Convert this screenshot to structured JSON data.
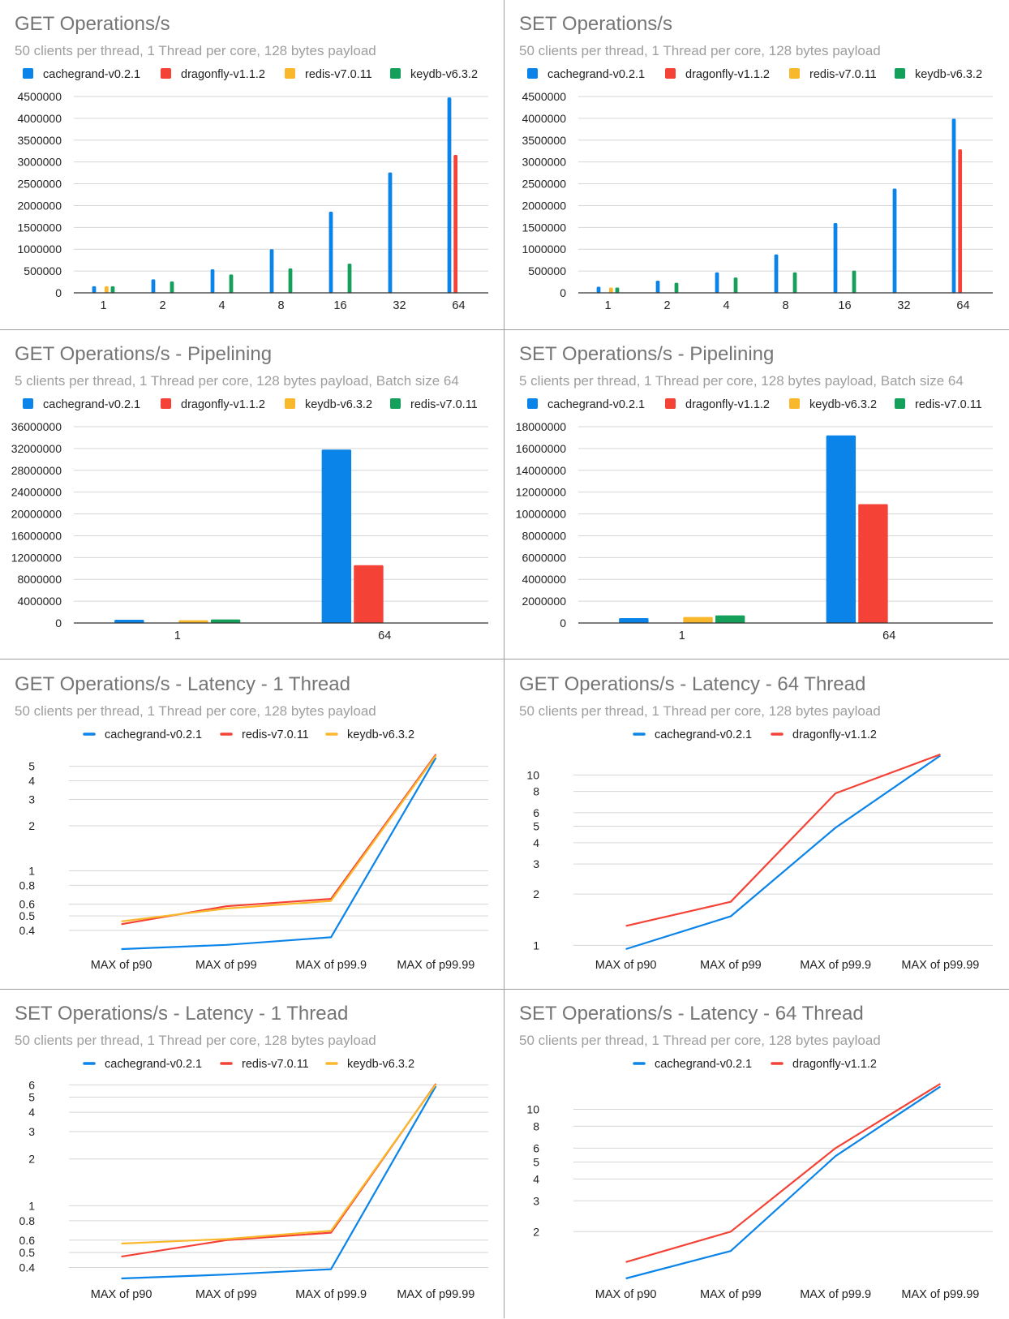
{
  "colors": {
    "cachegrand": "#0a84e8",
    "dragonfly": "#f44336",
    "redis": "#f9b82b",
    "keydb": "#14a05a",
    "title": "#757575",
    "subtitle": "#9e9e9e",
    "axis_text": "#222222",
    "grid": "#d6d6d6"
  },
  "chart_data": [
    {
      "id": "get-ops",
      "type": "bar",
      "title": "GET Operations/s",
      "subtitle": "50 clients per thread, 1 Thread per core, 128 bytes payload",
      "categories": [
        "1",
        "2",
        "4",
        "8",
        "16",
        "32",
        "64"
      ],
      "series": [
        {
          "name": "cachegrand-v0.2.1",
          "color_key": "cachegrand",
          "values": [
            150000,
            310000,
            540000,
            1000000,
            1860000,
            2760000,
            4480000
          ]
        },
        {
          "name": "dragonfly-v1.1.2",
          "color_key": "dragonfly",
          "values": [
            null,
            null,
            null,
            null,
            null,
            null,
            3160000
          ]
        },
        {
          "name": "redis-v7.0.11",
          "color_key": "redis",
          "values": [
            150000,
            null,
            null,
            null,
            null,
            null,
            null
          ]
        },
        {
          "name": "keydb-v6.3.2",
          "color_key": "keydb",
          "values": [
            150000,
            260000,
            420000,
            560000,
            670000,
            null,
            null
          ]
        }
      ],
      "y_ticks": [
        0,
        500000,
        1000000,
        1500000,
        2000000,
        2500000,
        3000000,
        3500000,
        4000000,
        4500000
      ],
      "ylim": [
        0,
        4500000
      ],
      "scale": "linear",
      "grid": true,
      "legend": "top"
    },
    {
      "id": "set-ops",
      "type": "bar",
      "title": "SET Operations/s",
      "subtitle": "50 clients per thread, 1 Thread per core, 128 bytes payload",
      "categories": [
        "1",
        "2",
        "4",
        "8",
        "16",
        "32",
        "64"
      ],
      "series": [
        {
          "name": "cachegrand-v0.2.1",
          "color_key": "cachegrand",
          "values": [
            140000,
            280000,
            470000,
            880000,
            1600000,
            2390000,
            3990000
          ]
        },
        {
          "name": "dragonfly-v1.1.2",
          "color_key": "dragonfly",
          "values": [
            null,
            null,
            null,
            null,
            null,
            null,
            3290000
          ]
        },
        {
          "name": "redis-v7.0.11",
          "color_key": "redis",
          "values": [
            120000,
            null,
            null,
            null,
            null,
            null,
            null
          ]
        },
        {
          "name": "keydb-v6.3.2",
          "color_key": "keydb",
          "values": [
            120000,
            230000,
            350000,
            470000,
            510000,
            null,
            null
          ]
        }
      ],
      "y_ticks": [
        0,
        500000,
        1000000,
        1500000,
        2000000,
        2500000,
        3000000,
        3500000,
        4000000,
        4500000
      ],
      "ylim": [
        0,
        4500000
      ],
      "scale": "linear",
      "grid": true,
      "legend": "top"
    },
    {
      "id": "get-pipe",
      "type": "bar",
      "title": "GET Operations/s - Pipelining",
      "subtitle": "5 clients per thread, 1 Thread per core, 128 bytes payload, Batch size 64",
      "categories": [
        "1",
        "64"
      ],
      "series": [
        {
          "name": "cachegrand-v0.2.1",
          "color_key": "cachegrand",
          "values": [
            600000,
            31800000
          ]
        },
        {
          "name": "dragonfly-v1.1.2",
          "color_key": "dragonfly",
          "values": [
            null,
            10600000
          ]
        },
        {
          "name": "keydb-v6.3.2",
          "color_key": "redis",
          "values": [
            500000,
            null
          ]
        },
        {
          "name": "redis-v7.0.11",
          "color_key": "keydb",
          "values": [
            650000,
            null
          ]
        }
      ],
      "y_ticks": [
        0,
        4000000,
        8000000,
        12000000,
        16000000,
        20000000,
        24000000,
        28000000,
        32000000,
        36000000
      ],
      "ylim": [
        0,
        36000000
      ],
      "scale": "linear",
      "grid": true,
      "legend": "top"
    },
    {
      "id": "set-pipe",
      "type": "bar",
      "title": "SET Operations/s - Pipelining",
      "subtitle": "5 clients per thread, 1 Thread per core, 128 bytes payload, Batch size 64",
      "categories": [
        "1",
        "64"
      ],
      "series": [
        {
          "name": "cachegrand-v0.2.1",
          "color_key": "cachegrand",
          "values": [
            450000,
            17200000
          ]
        },
        {
          "name": "dragonfly-v1.1.2",
          "color_key": "dragonfly",
          "values": [
            null,
            10900000
          ]
        },
        {
          "name": "keydb-v6.3.2",
          "color_key": "redis",
          "values": [
            550000,
            null
          ]
        },
        {
          "name": "redis-v7.0.11",
          "color_key": "keydb",
          "values": [
            700000,
            null
          ]
        }
      ],
      "y_ticks": [
        0,
        2000000,
        4000000,
        6000000,
        8000000,
        10000000,
        12000000,
        14000000,
        16000000,
        18000000
      ],
      "ylim": [
        0,
        18000000
      ],
      "scale": "linear",
      "grid": true,
      "legend": "top"
    },
    {
      "id": "get-lat-1",
      "type": "line",
      "title": "GET Operations/s - Latency - 1 Thread",
      "subtitle": "50 clients per thread, 1 Thread per core, 128 bytes payload",
      "categories": [
        "MAX of p90",
        "MAX of p99",
        "MAX of p99.9",
        "MAX of p99.99"
      ],
      "series": [
        {
          "name": "cachegrand-v0.2.1",
          "color_key": "cachegrand",
          "values": [
            0.3,
            0.32,
            0.36,
            5.7
          ]
        },
        {
          "name": "redis-v7.0.11",
          "color_key": "dragonfly",
          "values": [
            0.44,
            0.58,
            0.65,
            6.0
          ]
        },
        {
          "name": "keydb-v6.3.2",
          "color_key": "redis",
          "values": [
            0.46,
            0.56,
            0.63,
            5.9
          ]
        }
      ],
      "y_ticks": [
        0.4,
        0.5,
        0.6,
        0.8,
        1,
        2,
        3,
        4,
        5
      ],
      "ylim": [
        0.3,
        6.0
      ],
      "scale": "log",
      "grid": true,
      "legend": "top"
    },
    {
      "id": "get-lat-64",
      "type": "line",
      "title": "GET Operations/s - Latency - 64 Thread",
      "subtitle": "50 clients per thread, 1 Thread per core, 128 bytes payload",
      "categories": [
        "MAX of p90",
        "MAX of p99",
        "MAX of p99.9",
        "MAX of p99.99"
      ],
      "series": [
        {
          "name": "cachegrand-v0.2.1",
          "color_key": "cachegrand",
          "values": [
            0.95,
            1.48,
            4.9,
            13.0
          ]
        },
        {
          "name": "dragonfly-v1.1.2",
          "color_key": "dragonfly",
          "values": [
            1.3,
            1.8,
            7.8,
            13.2
          ]
        }
      ],
      "y_ticks": [
        1,
        2,
        3,
        4,
        5,
        6,
        8,
        10
      ],
      "ylim": [
        0.95,
        13.2
      ],
      "scale": "log",
      "grid": true,
      "legend": "top"
    },
    {
      "id": "set-lat-1",
      "type": "line",
      "title": "SET Operations/s - Latency - 1 Thread",
      "subtitle": "50 clients per thread, 1 Thread per core, 128 bytes payload",
      "categories": [
        "MAX of p90",
        "MAX of p99",
        "MAX of p99.9",
        "MAX of p99.99"
      ],
      "series": [
        {
          "name": "cachegrand-v0.2.1",
          "color_key": "cachegrand",
          "values": [
            0.34,
            0.36,
            0.39,
            5.9
          ]
        },
        {
          "name": "redis-v7.0.11",
          "color_key": "dragonfly",
          "values": [
            0.47,
            0.6,
            0.67,
            6.1
          ]
        },
        {
          "name": "keydb-v6.3.2",
          "color_key": "redis",
          "values": [
            0.57,
            0.61,
            0.69,
            6.05
          ]
        }
      ],
      "y_ticks": [
        0.4,
        0.5,
        0.6,
        0.8,
        1,
        2,
        3,
        4,
        5,
        6
      ],
      "ylim": [
        0.34,
        6.1
      ],
      "scale": "log",
      "grid": true,
      "legend": "top"
    },
    {
      "id": "set-lat-64",
      "type": "line",
      "title": "SET Operations/s - Latency - 64 Thread",
      "subtitle": "50 clients per thread, 1 Thread per core, 128 bytes payload",
      "categories": [
        "MAX of p90",
        "MAX of p99",
        "MAX of p99.9",
        "MAX of p99.99"
      ],
      "series": [
        {
          "name": "cachegrand-v0.2.1",
          "color_key": "cachegrand",
          "values": [
            1.08,
            1.55,
            5.4,
            13.5
          ]
        },
        {
          "name": "dragonfly-v1.1.2",
          "color_key": "dragonfly",
          "values": [
            1.34,
            2.0,
            6.0,
            14.0
          ]
        }
      ],
      "y_ticks": [
        2,
        3,
        4,
        5,
        6,
        8,
        10
      ],
      "ylim": [
        1.08,
        14.0
      ],
      "scale": "log",
      "grid": true,
      "legend": "top"
    }
  ]
}
